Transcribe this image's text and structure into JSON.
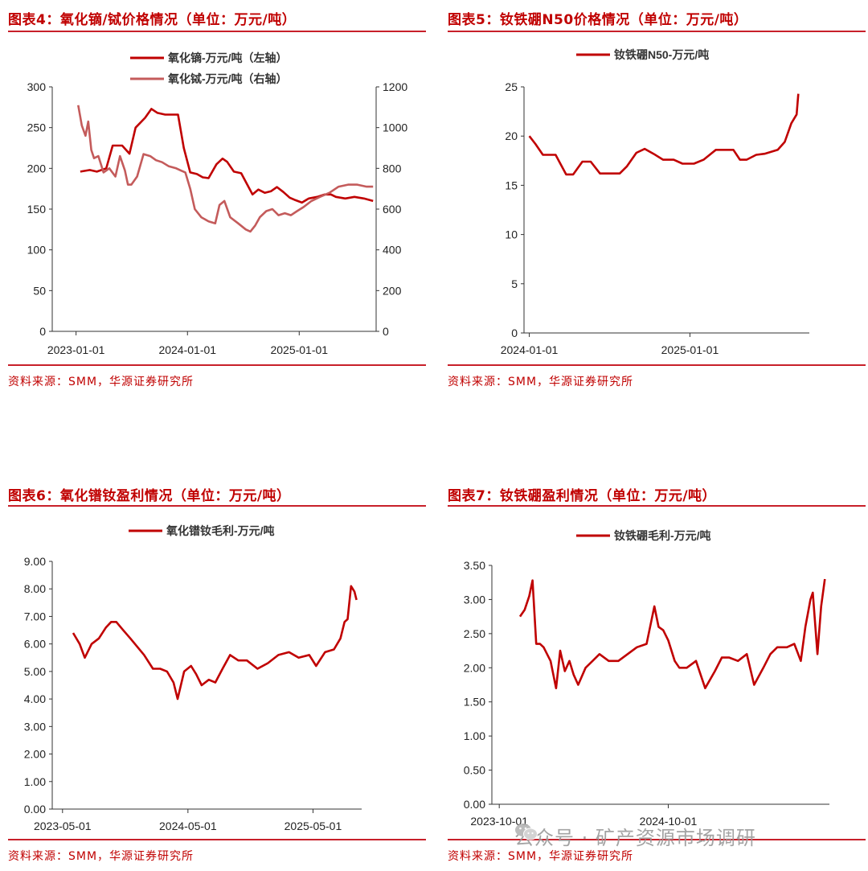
{
  "source_text": "资料来源：SMM，华源证券研究所",
  "watermark": "公众号 · 矿产资源市场调研",
  "chart_data": [
    {
      "type": "line",
      "title": "图表4：氧化镝/铽价格情况（单位：万元/吨）",
      "x_ticks": [
        "2023-01-01",
        "2024-01-01",
        "2025-01-01"
      ],
      "ylim_left": [
        0,
        300
      ],
      "yticks_left": [
        "0",
        "50",
        "100",
        "150",
        "200",
        "250",
        "300"
      ],
      "ylim_right": [
        0,
        1200
      ],
      "yticks_right": [
        "0",
        "200",
        "400",
        "600",
        "800",
        "1000",
        "1200"
      ],
      "series": [
        {
          "name": "氧化镝-万元/吨（左轴）",
          "axis": "left",
          "color": "#c00000",
          "x": [
            "2023-01-15",
            "2023-02-15",
            "2023-03-10",
            "2023-04-10",
            "2023-05-01",
            "2023-06-01",
            "2023-06-25",
            "2023-07-15",
            "2023-08-15",
            "2023-09-05",
            "2023-09-25",
            "2023-10-20",
            "2023-11-20",
            "2023-12-01",
            "2023-12-20",
            "2024-01-10",
            "2024-02-01",
            "2024-02-20",
            "2024-03-10",
            "2024-04-05",
            "2024-04-25",
            "2024-05-10",
            "2024-06-01",
            "2024-06-25",
            "2024-07-15",
            "2024-08-01",
            "2024-08-20",
            "2024-09-10",
            "2024-10-01",
            "2024-10-20",
            "2024-11-10",
            "2024-12-01",
            "2024-12-20",
            "2025-01-10",
            "2025-02-01",
            "2025-03-01",
            "2025-03-25",
            "2025-04-15",
            "2025-05-01",
            "2025-06-01",
            "2025-07-01",
            "2025-08-01",
            "2025-08-31"
          ],
          "y": [
            196,
            198,
            196,
            200,
            228,
            228,
            218,
            250,
            262,
            273,
            268,
            266,
            266,
            266,
            225,
            195,
            193,
            189,
            188,
            205,
            212,
            208,
            196,
            194,
            180,
            168,
            174,
            170,
            172,
            177,
            171,
            164,
            161,
            158,
            163,
            165,
            168,
            168,
            165,
            163,
            165,
            163,
            160
          ]
        },
        {
          "name": "氧化铽-万元/吨（右轴）",
          "axis": "right",
          "color": "#c45b5b",
          "x": [
            "2023-01-08",
            "2023-01-20",
            "2023-02-01",
            "2023-02-10",
            "2023-02-20",
            "2023-03-01",
            "2023-03-15",
            "2023-04-01",
            "2023-04-20",
            "2023-05-10",
            "2023-05-25",
            "2023-06-10",
            "2023-06-20",
            "2023-07-01",
            "2023-07-20",
            "2023-08-10",
            "2023-09-01",
            "2023-09-20",
            "2023-10-10",
            "2023-11-01",
            "2023-11-25",
            "2023-12-10",
            "2023-12-25",
            "2024-01-10",
            "2024-01-25",
            "2024-02-15",
            "2024-03-10",
            "2024-04-01",
            "2024-04-15",
            "2024-05-01",
            "2024-05-20",
            "2024-06-15",
            "2024-07-10",
            "2024-07-25",
            "2024-08-10",
            "2024-08-25",
            "2024-09-15",
            "2024-10-05",
            "2024-10-25",
            "2024-11-15",
            "2024-12-05",
            "2024-12-25",
            "2025-01-15",
            "2025-02-10",
            "2025-03-10",
            "2025-04-10",
            "2025-05-10",
            "2025-06-10",
            "2025-07-10",
            "2025-08-10",
            "2025-08-31"
          ],
          "y": [
            1110,
            1010,
            960,
            1030,
            890,
            850,
            860,
            780,
            800,
            760,
            860,
            790,
            720,
            720,
            760,
            870,
            860,
            840,
            830,
            810,
            800,
            790,
            780,
            700,
            600,
            560,
            540,
            530,
            620,
            640,
            560,
            530,
            500,
            490,
            520,
            560,
            590,
            600,
            570,
            580,
            570,
            590,
            610,
            640,
            660,
            680,
            710,
            720,
            720,
            710,
            710
          ]
        }
      ]
    },
    {
      "type": "line",
      "title": "图表5：钕铁硼N50价格情况（单位：万元/吨）",
      "x_ticks": [
        "2024-01-01",
        "2025-01-01"
      ],
      "ylim": [
        0,
        25
      ],
      "yticks": [
        "0",
        "5",
        "10",
        "15",
        "20",
        "25"
      ],
      "series": [
        {
          "name": "钕铁硼N50-万元/吨",
          "color": "#c00000",
          "x": [
            "2024-01-01",
            "2024-01-15",
            "2024-02-01",
            "2024-03-01",
            "2024-03-25",
            "2024-04-10",
            "2024-05-01",
            "2024-05-20",
            "2024-06-10",
            "2024-07-01",
            "2024-07-25",
            "2024-08-10",
            "2024-09-01",
            "2024-09-20",
            "2024-10-10",
            "2024-11-01",
            "2024-11-25",
            "2024-12-15",
            "2025-01-10",
            "2025-02-01",
            "2025-03-01",
            "2025-03-25",
            "2025-04-10",
            "2025-04-25",
            "2025-05-10",
            "2025-06-01",
            "2025-06-20",
            "2025-07-05",
            "2025-07-20",
            "2025-08-05",
            "2025-08-20",
            "2025-09-01",
            "2025-09-05"
          ],
          "y": [
            20,
            19.2,
            18.1,
            18.1,
            16.1,
            16.1,
            17.4,
            17.4,
            16.2,
            16.2,
            16.2,
            16.9,
            18.3,
            18.7,
            18.2,
            17.6,
            17.6,
            17.2,
            17.2,
            17.6,
            18.6,
            18.6,
            18.6,
            17.6,
            17.6,
            18.1,
            18.2,
            18.4,
            18.6,
            19.4,
            21.3,
            22.2,
            24.3
          ]
        }
      ]
    },
    {
      "type": "line",
      "title": "图表6：氧化镨钕盈利情况（单位：万元/吨）",
      "x_ticks": [
        "2023-05-01",
        "2024-05-01",
        "2025-05-01"
      ],
      "ylim": [
        0,
        9
      ],
      "yticks": [
        "0.00",
        "1.00",
        "2.00",
        "3.00",
        "4.00",
        "5.00",
        "6.00",
        "7.00",
        "8.00",
        "9.00"
      ],
      "series": [
        {
          "name": "氧化镨钕毛利-万元/吨",
          "color": "#c00000",
          "x": [
            "2023-06-01",
            "2023-06-20",
            "2023-07-05",
            "2023-07-25",
            "2023-08-15",
            "2023-09-05",
            "2023-09-20",
            "2023-10-05",
            "2023-10-25",
            "2023-11-15",
            "2023-12-05",
            "2023-12-25",
            "2024-01-20",
            "2024-02-10",
            "2024-03-01",
            "2024-03-20",
            "2024-04-01",
            "2024-04-20",
            "2024-05-10",
            "2024-05-25",
            "2024-06-10",
            "2024-07-01",
            "2024-07-20",
            "2024-08-10",
            "2024-09-01",
            "2024-09-25",
            "2024-10-20",
            "2024-11-20",
            "2024-12-20",
            "2025-01-20",
            "2025-02-20",
            "2025-03-20",
            "2025-04-20",
            "2025-05-10",
            "2025-06-05",
            "2025-07-01",
            "2025-07-20",
            "2025-08-01",
            "2025-08-10",
            "2025-08-20",
            "2025-08-30",
            "2025-09-05"
          ],
          "y": [
            6.4,
            6.0,
            5.5,
            6.0,
            6.2,
            6.6,
            6.8,
            6.8,
            6.5,
            6.2,
            5.9,
            5.6,
            5.1,
            5.1,
            5.0,
            4.6,
            4.0,
            5.0,
            5.2,
            4.9,
            4.5,
            4.7,
            4.6,
            5.1,
            5.6,
            5.4,
            5.4,
            5.1,
            5.3,
            5.6,
            5.7,
            5.5,
            5.6,
            5.2,
            5.7,
            5.8,
            6.2,
            6.8,
            6.9,
            8.1,
            7.9,
            7.6
          ]
        }
      ]
    },
    {
      "type": "line",
      "title": "图表7：钕铁硼盈利情况（单位：万元/吨）",
      "x_ticks": [
        "2023-10-01",
        "2024-10-01"
      ],
      "ylim": [
        0,
        3.5
      ],
      "yticks": [
        "0.00",
        "0.50",
        "1.00",
        "1.50",
        "2.00",
        "2.50",
        "3.00",
        "3.50"
      ],
      "series": [
        {
          "name": "钕铁硼毛利-万元/吨",
          "color": "#c00000",
          "x": [
            "2023-11-15",
            "2023-11-25",
            "2023-12-05",
            "2023-12-12",
            "2023-12-20",
            "2023-12-28",
            "2024-01-05",
            "2024-01-20",
            "2024-02-01",
            "2024-02-10",
            "2024-02-20",
            "2024-03-01",
            "2024-03-10",
            "2024-03-20",
            "2024-04-05",
            "2024-04-20",
            "2024-05-05",
            "2024-05-25",
            "2024-06-15",
            "2024-07-05",
            "2024-07-25",
            "2024-08-15",
            "2024-09-01",
            "2024-09-10",
            "2024-09-20",
            "2024-10-01",
            "2024-10-15",
            "2024-10-25",
            "2024-11-10",
            "2024-11-30",
            "2024-12-20",
            "2025-01-10",
            "2025-01-25",
            "2025-02-10",
            "2025-03-01",
            "2025-03-20",
            "2025-04-05",
            "2025-04-25",
            "2025-05-10",
            "2025-05-25",
            "2025-06-15",
            "2025-07-01",
            "2025-07-15",
            "2025-07-25",
            "2025-08-05",
            "2025-08-10",
            "2025-08-20",
            "2025-08-28",
            "2025-09-05"
          ],
          "y": [
            2.75,
            2.85,
            3.05,
            3.28,
            2.35,
            2.35,
            2.3,
            2.1,
            1.7,
            2.25,
            1.95,
            2.1,
            1.9,
            1.75,
            2.0,
            2.1,
            2.2,
            2.1,
            2.1,
            2.2,
            2.3,
            2.35,
            2.9,
            2.6,
            2.55,
            2.4,
            2.1,
            2.0,
            2.0,
            2.1,
            1.7,
            1.95,
            2.15,
            2.15,
            2.1,
            2.2,
            1.75,
            2.0,
            2.2,
            2.3,
            2.3,
            2.35,
            2.1,
            2.6,
            3.0,
            3.1,
            2.2,
            2.9,
            3.3
          ]
        }
      ]
    }
  ]
}
